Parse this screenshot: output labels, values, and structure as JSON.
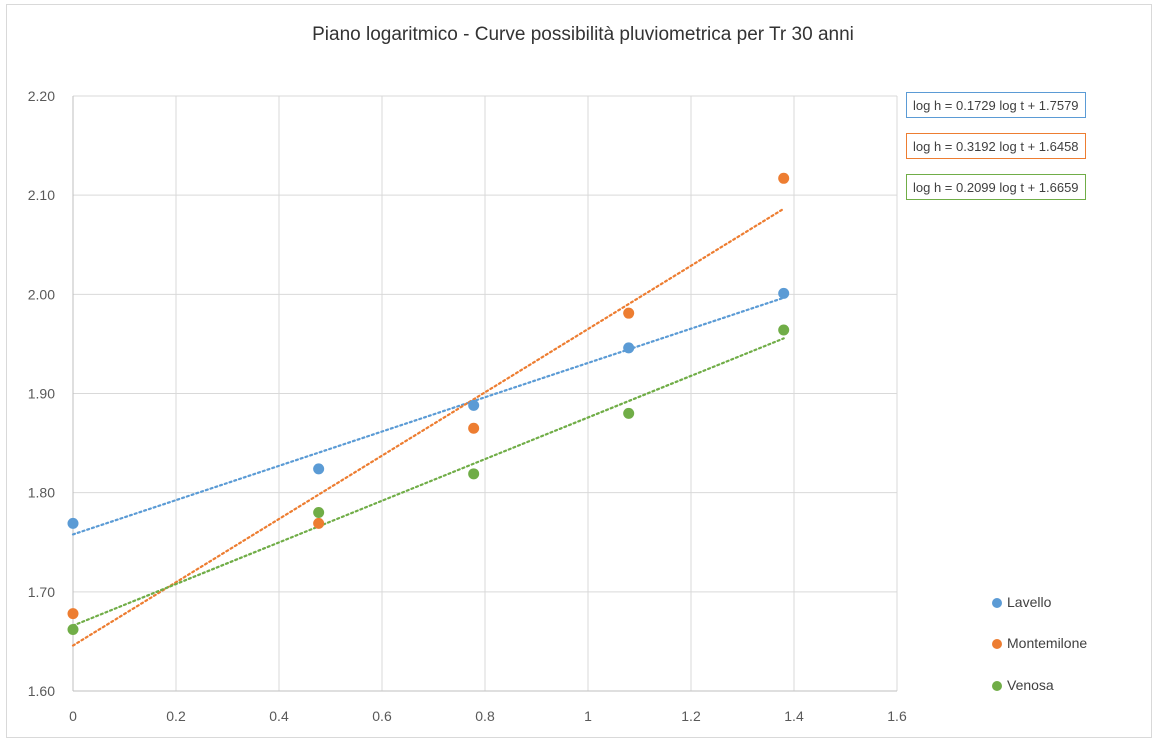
{
  "chart_data": {
    "type": "scatter",
    "title": "Piano logaritmico - Curve possibilità pluviometrica per Tr 30 anni",
    "xlabel": "",
    "ylabel": "",
    "xlim": [
      0,
      1.6
    ],
    "ylim": [
      1.6,
      2.2
    ],
    "x_ticks": [
      "0",
      "0.2",
      "0.4",
      "0.6",
      "0.8",
      "1",
      "1.2",
      "1.4",
      "1.6"
    ],
    "y_ticks": [
      "1.60",
      "1.70",
      "1.80",
      "1.90",
      "2.00",
      "2.10",
      "2.20"
    ],
    "grid": true,
    "legend_position": "right",
    "series": [
      {
        "name": "Lavello",
        "color": "#5b9bd5",
        "x": [
          0,
          0.477,
          0.778,
          1.079,
          1.38
        ],
        "y": [
          1.769,
          1.824,
          1.888,
          1.946,
          2.001
        ],
        "trendline": {
          "slope": 0.1729,
          "intercept": 1.7579,
          "x_range": [
            0,
            1.38
          ],
          "equation": "log h = 0.1729 log t + 1.7579"
        }
      },
      {
        "name": "Montemilone",
        "color": "#ed7d31",
        "x": [
          0,
          0.477,
          0.778,
          1.079,
          1.38
        ],
        "y": [
          1.678,
          1.769,
          1.865,
          1.981,
          2.117
        ],
        "trendline": {
          "slope": 0.3192,
          "intercept": 1.6458,
          "x_range": [
            0,
            1.38
          ],
          "equation": "log h = 0.3192 log t + 1.6458"
        }
      },
      {
        "name": "Venosa",
        "color": "#70ad47",
        "x": [
          0,
          0.477,
          0.778,
          1.079,
          1.38
        ],
        "y": [
          1.662,
          1.78,
          1.819,
          1.88,
          1.964
        ],
        "trendline": {
          "slope": 0.2099,
          "intercept": 1.6659,
          "x_range": [
            0,
            1.38
          ],
          "equation": "log h = 0.2099 log t + 1.6659"
        }
      }
    ]
  }
}
